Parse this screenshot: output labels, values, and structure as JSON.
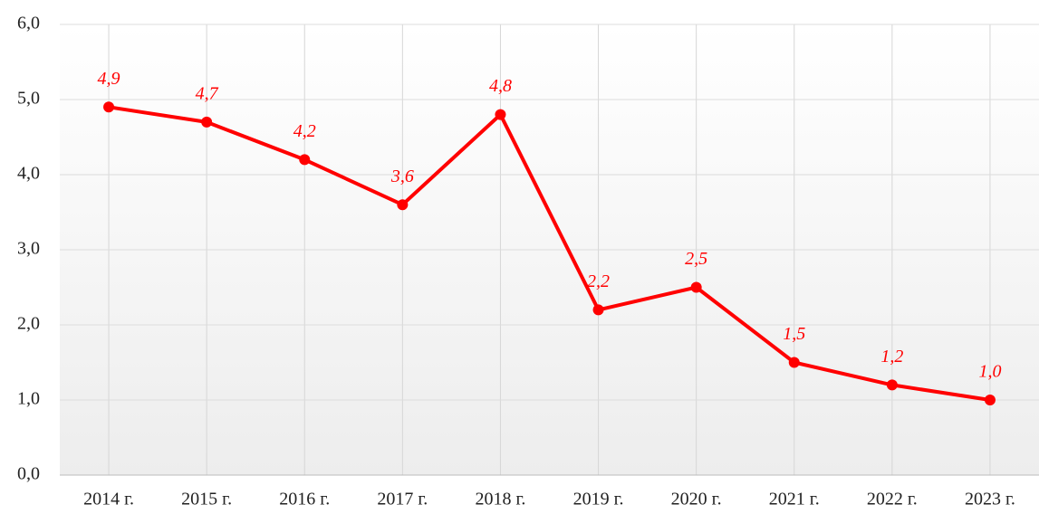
{
  "chart_data": {
    "type": "line",
    "categories": [
      "2014 г.",
      "2015 г.",
      "2016 г.",
      "2017 г.",
      "2018 г.",
      "2019 г.",
      "2020 г.",
      "2021 г.",
      "2022 г.",
      "2023 г."
    ],
    "values": [
      4.9,
      4.7,
      4.2,
      3.6,
      4.8,
      2.2,
      2.5,
      1.5,
      1.2,
      1.0
    ],
    "value_labels": [
      "4,9",
      "4,7",
      "4,2",
      "3,6",
      "4,8",
      "2,2",
      "2,5",
      "1,5",
      "1,2",
      "1,0"
    ],
    "color": "#ff0000",
    "ylim": [
      0,
      6
    ],
    "yticks": [
      {
        "value": 0,
        "label": "0,0"
      },
      {
        "value": 1,
        "label": "1,0"
      },
      {
        "value": 2,
        "label": "2,0"
      },
      {
        "value": 3,
        "label": "3,0"
      },
      {
        "value": 4,
        "label": "4,0"
      },
      {
        "value": 5,
        "label": "5,0"
      },
      {
        "value": 6,
        "label": "6,0"
      }
    ],
    "grid": true
  }
}
